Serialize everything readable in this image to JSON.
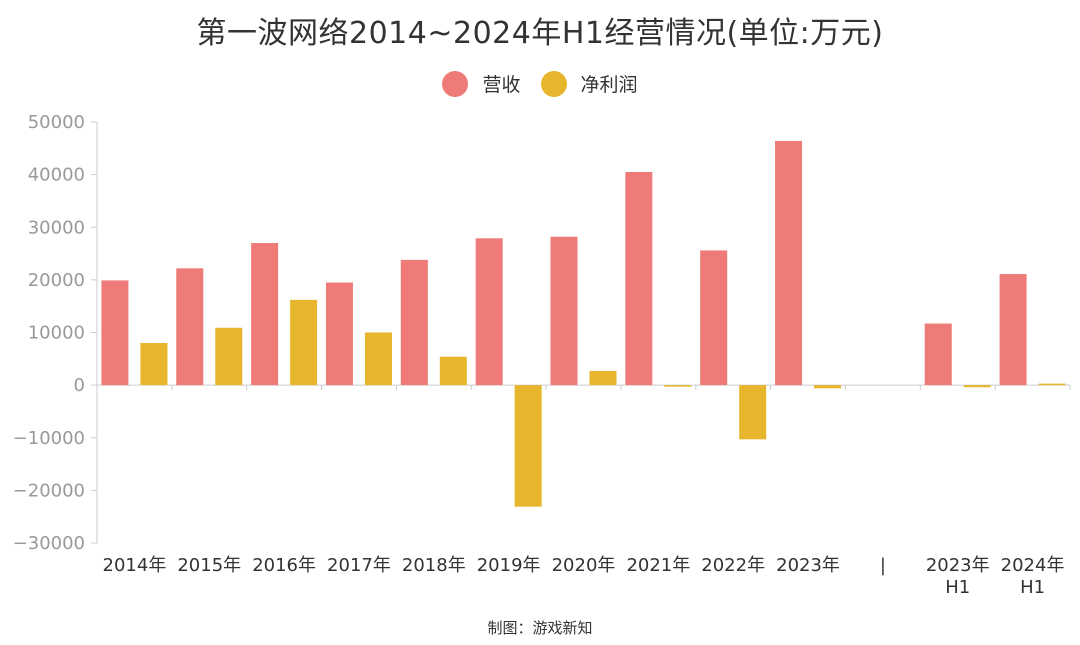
{
  "chart_data": {
    "type": "bar",
    "title": "第一波网络2014~2024年H1经营情况(单位:万元)",
    "categories": [
      "2014年",
      "2015年",
      "2016年",
      "2017年",
      "2018年",
      "2019年",
      "2020年",
      "2021年",
      "2022年",
      "2023年",
      "|",
      "2023年\nH1",
      "2024年\nH1"
    ],
    "series": [
      {
        "name": "营收",
        "color": "#EF7B78",
        "values": [
          19900,
          22200,
          27000,
          19500,
          23800,
          27900,
          28200,
          40500,
          25600,
          46400,
          null,
          11700,
          21100
        ]
      },
      {
        "name": "净利润",
        "color": "#E7B62C",
        "values": [
          8000,
          10900,
          16200,
          10000,
          5400,
          -23100,
          2700,
          -300,
          -10300,
          -600,
          null,
          -400,
          100
        ]
      }
    ],
    "ylim": [
      -30000,
      50000
    ],
    "yticks": [
      50000,
      40000,
      30000,
      20000,
      10000,
      0,
      -10000,
      -20000,
      -30000
    ],
    "xlabel": "",
    "ylabel": "",
    "legend_position": "top-center",
    "grid": false
  },
  "source": "制图：游戏新知"
}
